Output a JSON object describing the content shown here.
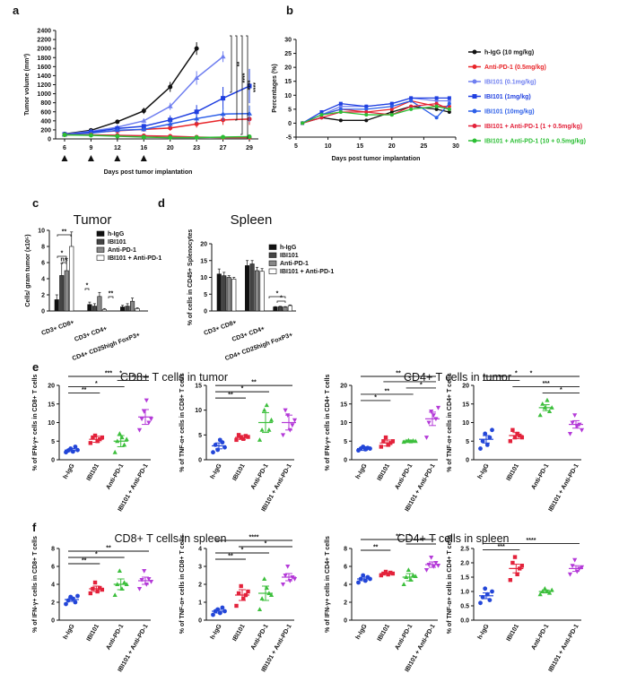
{
  "colors": {
    "hIgG": "#111111",
    "antiPD1": "#e8262a",
    "ibi01": "#6f7ff0",
    "ibi1": "#1f3fe0",
    "ibi10": "#2b5ee8",
    "combo1": "#e3223b",
    "combo10": "#2bbf34",
    "scatter": [
      "#2346d8",
      "#e3223b",
      "#3dbf3d",
      "#b43ad8"
    ]
  },
  "panel_labels": [
    "a",
    "b",
    "c",
    "d",
    "e",
    "f"
  ],
  "chart_data": [
    {
      "id": "a",
      "type": "line",
      "xlabel": "Days post tumor implantation",
      "ylabel": "Tumor volume (mm³)",
      "x": [
        6,
        9,
        12,
        16,
        20,
        23,
        27,
        29
      ],
      "xticks": [
        "6",
        "9",
        "12",
        "16",
        "20",
        "23",
        "27",
        "29"
      ],
      "yticks": [
        "0",
        "200",
        "400",
        "600",
        "800",
        "1000",
        "1200",
        "1400",
        "1600",
        "1800",
        "2000",
        "2200",
        "2400"
      ],
      "ylim": [
        0,
        2400
      ],
      "dosing_days": [
        6,
        9,
        12,
        16
      ],
      "significance": [
        "**",
        "****",
        "****",
        "****"
      ],
      "series": [
        {
          "name": "h-IgG (10 mg/kg)",
          "color": "#111111",
          "values": [
            110,
            190,
            380,
            620,
            1150,
            2000,
            null,
            null
          ],
          "err": [
            15,
            25,
            40,
            70,
            110,
            140,
            null,
            null
          ]
        },
        {
          "name": "Anti-PD-1 (0.5mg/kg)",
          "color": "#e8262a",
          "values": [
            100,
            140,
            180,
            210,
            240,
            330,
            420,
            440
          ],
          "err": [
            10,
            20,
            30,
            40,
            60,
            80,
            110,
            130
          ]
        },
        {
          "name": "IBI101 (0.1mg/kg)",
          "color": "#6f7ff0",
          "values": [
            105,
            170,
            260,
            400,
            720,
            1350,
            1820,
            null
          ],
          "err": [
            12,
            20,
            40,
            50,
            80,
            150,
            120,
            null
          ]
        },
        {
          "name": "IBI101 (1mg/kg)",
          "color": "#1f3fe0",
          "values": [
            100,
            150,
            230,
            280,
            420,
            600,
            900,
            1170
          ],
          "err": [
            10,
            20,
            40,
            50,
            100,
            150,
            250,
            380
          ]
        },
        {
          "name": "IBI101 (10mg/kg)",
          "color": "#2b5ee8",
          "values": [
            95,
            130,
            190,
            210,
            330,
            450,
            550,
            560
          ],
          "err": [
            10,
            15,
            30,
            40,
            80,
            100,
            150,
            180
          ]
        },
        {
          "name": "IBI101 + Anti-PD-1 (1 + 0.5mg/kg)",
          "color": "#e3223b",
          "values": [
            90,
            90,
            80,
            70,
            60,
            40,
            30,
            30
          ],
          "err": [
            10,
            10,
            15,
            15,
            15,
            10,
            10,
            10
          ]
        },
        {
          "name": "IBI101 + Anti-PD-1 (10 + 0.5mg/kg)",
          "color": "#2bbf34",
          "values": [
            90,
            80,
            60,
            40,
            30,
            30,
            40,
            50
          ],
          "err": [
            10,
            10,
            10,
            10,
            10,
            10,
            10,
            15
          ]
        }
      ]
    },
    {
      "id": "b",
      "type": "line",
      "xlabel": "Days post tumor implantation",
      "ylabel": "Percentages (%)",
      "xticks": [
        "5",
        "10",
        "15",
        "20",
        "25",
        "30"
      ],
      "yticks": [
        "-5",
        "0",
        "5",
        "10",
        "15",
        "20",
        "25",
        "30"
      ],
      "xlim": [
        5,
        30
      ],
      "ylim": [
        -5,
        30
      ],
      "x": [
        6,
        9,
        12,
        16,
        20,
        23,
        27,
        29
      ],
      "series": [
        {
          "name": "h-IgG (10 mg/kg)",
          "color": "#111111",
          "values": [
            0,
            2,
            1,
            1,
            4,
            6,
            5,
            4
          ]
        },
        {
          "name": "Anti-PD-1 (0.5mg/kg)",
          "color": "#e8262a",
          "values": [
            0,
            3,
            5,
            4,
            5,
            8,
            6,
            6
          ]
        },
        {
          "name": "IBI101 (0.1mg/kg)",
          "color": "#6f7ff0",
          "values": [
            0,
            3,
            6,
            6,
            7,
            9,
            8,
            8
          ]
        },
        {
          "name": "IBI101 (1mg/kg)",
          "color": "#1f3fe0",
          "values": [
            0,
            4,
            7,
            6,
            7,
            9,
            9,
            9
          ]
        },
        {
          "name": "IBI101 (10mg/kg)",
          "color": "#2b5ee8",
          "values": [
            0,
            3,
            5,
            5,
            6,
            8,
            2,
            7
          ]
        },
        {
          "name": "IBI101 + Anti-PD-1 (1 + 0.5mg/kg)",
          "color": "#e3223b",
          "values": [
            0,
            2,
            4,
            4,
            3,
            6,
            7,
            5
          ]
        },
        {
          "name": "IBI101 + Anti-PD-1 (10 + 0.5mg/kg)",
          "color": "#2bbf34",
          "values": [
            0,
            3,
            4,
            3,
            3,
            5,
            6,
            5
          ]
        }
      ]
    },
    {
      "id": "c",
      "type": "bar",
      "title": "Tumor",
      "ylabel": "Cells/ gram tumor (x10⁵)",
      "yticks": [
        "0",
        "2",
        "4",
        "6",
        "8",
        "10"
      ],
      "ylim": [
        0,
        10
      ],
      "categories": [
        "CD3+ CD8+",
        "CD3+ CD4+",
        "CD4+ CD25high FoxP3+"
      ],
      "legend": [
        "h-IgG",
        "IBI101",
        "Anti-PD-1",
        "IBI101 + Anti-PD-1"
      ],
      "series": [
        {
          "name": "h-IgG",
          "values": [
            1.4,
            0.8,
            0.5
          ],
          "err": [
            0.6,
            0.3,
            0.2
          ]
        },
        {
          "name": "IBI101",
          "values": [
            4.4,
            0.6,
            0.6
          ],
          "err": [
            1.5,
            0.3,
            0.3
          ]
        },
        {
          "name": "Anti-PD-1",
          "values": [
            5.0,
            1.8,
            1.2
          ],
          "err": [
            1.5,
            0.5,
            0.4
          ]
        },
        {
          "name": "IBI101 + Anti-PD-1",
          "values": [
            8.0,
            0.2,
            0.3
          ],
          "err": [
            1.8,
            0.1,
            0.1
          ]
        }
      ],
      "significance": [
        "**",
        "*",
        "ns",
        "*",
        "**"
      ]
    },
    {
      "id": "d",
      "type": "bar",
      "title": "Spleen",
      "ylabel": "% of cells in CD45+ Splenocytes",
      "yticks": [
        "0",
        "5",
        "10",
        "15",
        "20"
      ],
      "ylim": [
        0,
        20
      ],
      "categories": [
        "CD3+ CD8+",
        "CD3+ CD4+",
        "CD4+ CD25high FoxP3+"
      ],
      "legend": [
        "h-IgG",
        "IBI101",
        "Anti-PD-1",
        "IBI101 + Anti-PD-1"
      ],
      "series": [
        {
          "name": "h-IgG",
          "values": [
            11.0,
            13.5,
            1.2
          ],
          "err": [
            1.5,
            1.5,
            0.1
          ]
        },
        {
          "name": "IBI101",
          "values": [
            10.5,
            14.0,
            1.3
          ],
          "err": [
            1.0,
            1.0,
            0.1
          ]
        },
        {
          "name": "Anti-PD-1",
          "values": [
            10.0,
            12.0,
            1.2
          ],
          "err": [
            0.5,
            1.0,
            0.1
          ]
        },
        {
          "name": "IBI101 + Anti-PD-1",
          "values": [
            9.5,
            11.8,
            1.6
          ],
          "err": [
            0.5,
            0.8,
            0.2
          ]
        }
      ],
      "significance": [
        "*",
        "*"
      ]
    },
    {
      "id": "e1",
      "type": "scatter",
      "ylabel": "% of IFN-γ+ cells in CD8+ T cells",
      "yticks": [
        "0",
        "5",
        "10",
        "15",
        "20"
      ],
      "ylim": [
        0,
        20
      ],
      "categories": [
        "h-IgG",
        "IBI101",
        "Anti-PD-1",
        "IBI101 + Anti-PD-1"
      ],
      "means": [
        2.6,
        5.5,
        5.0,
        11.5
      ],
      "sem": [
        0.4,
        0.8,
        1.5,
        2.0
      ],
      "points": [
        [
          2,
          2.5,
          3,
          2.2,
          3.5,
          2.6
        ],
        [
          4.5,
          6,
          6.5,
          5,
          5.5,
          6
        ],
        [
          2,
          5,
          7,
          6,
          4,
          5.5
        ],
        [
          8,
          11,
          13,
          16,
          10,
          11
        ]
      ],
      "significance": [
        "**",
        "*",
        "***",
        "*",
        "*"
      ]
    },
    {
      "id": "e2",
      "type": "scatter",
      "ylabel": "% of TNF-α+ cells in CD8+ T cells",
      "yticks": [
        "0",
        "5",
        "10",
        "15"
      ],
      "ylim": [
        0,
        15
      ],
      "categories": [
        "h-IgG",
        "IBI101",
        "Anti-PD-1",
        "IBI101 + Anti-PD-1"
      ],
      "means": [
        2.8,
        4.5,
        7.5,
        7.5
      ],
      "sem": [
        0.6,
        0.4,
        2.0,
        1.5
      ],
      "points": [
        [
          1.5,
          3,
          2,
          4,
          3.5,
          2.5
        ],
        [
          4,
          5,
          4.5,
          4.2,
          4.8,
          4.6
        ],
        [
          4,
          6,
          10,
          11,
          6,
          8
        ],
        [
          5,
          10,
          9,
          6,
          7,
          8
        ]
      ],
      "significance": [
        "**",
        "*",
        "**"
      ]
    },
    {
      "id": "e3",
      "type": "scatter",
      "ylabel": "% of IFN-γ+ cells in CD4+ T cells",
      "yticks": [
        "0",
        "5",
        "10",
        "15",
        "20"
      ],
      "ylim": [
        0,
        20
      ],
      "categories": [
        "h-IgG",
        "IBI101",
        "Anti-PD-1",
        "IBI101 + Anti-PD-1"
      ],
      "means": [
        3.0,
        4.5,
        5.0,
        11.0
      ],
      "sem": [
        0.5,
        0.8,
        0.3,
        1.8
      ],
      "points": [
        [
          2.5,
          3,
          3.5,
          2.8,
          3.2,
          3
        ],
        [
          3.5,
          5,
          6,
          4,
          4.5,
          5
        ],
        [
          4.8,
          5,
          5.2,
          4.9,
          5.1,
          5
        ],
        [
          6,
          10,
          13,
          12,
          11,
          14
        ]
      ],
      "significance": [
        "*",
        "**",
        "**",
        "*",
        "*"
      ]
    },
    {
      "id": "e4",
      "type": "scatter",
      "ylabel": "% of TNF-α+ cells in CD4+ T cells",
      "yticks": [
        "0",
        "5",
        "10",
        "15",
        "20"
      ],
      "ylim": [
        0,
        20
      ],
      "categories": [
        "h-IgG",
        "IBI101",
        "Anti-PD-1",
        "IBI101 + Anti-PD-1"
      ],
      "means": [
        5.5,
        6.5,
        14.0,
        9.5
      ],
      "sem": [
        1.0,
        0.8,
        0.8,
        1.0
      ],
      "points": [
        [
          3,
          5,
          7,
          4,
          6,
          8
        ],
        [
          5,
          8,
          6,
          7,
          6.5,
          6
        ],
        [
          12,
          15,
          14,
          16,
          13,
          14
        ],
        [
          7,
          10,
          12,
          9,
          9.5,
          8
        ]
      ],
      "significance": [
        "*",
        "***",
        "*",
        "*",
        "**"
      ]
    },
    {
      "id": "f1",
      "type": "scatter",
      "ylabel": "% of IFN-γ+ cells in CD8+ T cells",
      "yticks": [
        "0",
        "2",
        "4",
        "6",
        "8"
      ],
      "ylim": [
        0,
        8
      ],
      "categories": [
        "h-IgG",
        "IBI101",
        "Anti-PD-1",
        "IBI101 + Anti-PD-1"
      ],
      "means": [
        2.3,
        3.5,
        4.0,
        4.4
      ],
      "sem": [
        0.2,
        0.3,
        0.6,
        0.4
      ],
      "points": [
        [
          1.8,
          2.2,
          2.6,
          2.4,
          2.0,
          2.7
        ],
        [
          3.0,
          3.5,
          4.2,
          3.2,
          3.6,
          3.4
        ],
        [
          2.8,
          4.0,
          5.5,
          3.5,
          4.2,
          4.0
        ],
        [
          3.5,
          4.5,
          5.5,
          4.0,
          4.6,
          4.3
        ]
      ],
      "significance": [
        "**",
        "*",
        "**"
      ]
    },
    {
      "id": "f2",
      "type": "scatter",
      "ylabel": "% of TNF-α+ cells in CD8+ T cells",
      "yticks": [
        "0",
        "1",
        "2",
        "3",
        "4"
      ],
      "ylim": [
        0,
        4
      ],
      "categories": [
        "h-IgG",
        "IBI101",
        "Anti-PD-1",
        "IBI101 + Anti-PD-1"
      ],
      "means": [
        0.5,
        1.4,
        1.5,
        2.4
      ],
      "sem": [
        0.1,
        0.3,
        0.4,
        0.2
      ],
      "points": [
        [
          0.3,
          0.5,
          0.6,
          0.4,
          0.7,
          0.5
        ],
        [
          0.8,
          1.5,
          1.9,
          1.2,
          1.4,
          1.6
        ],
        [
          0.6,
          1.2,
          2.3,
          1.8,
          1.5,
          1.4
        ],
        [
          2.0,
          2.5,
          3.0,
          2.2,
          2.4,
          2.3
        ]
      ],
      "significance": [
        "**",
        "*",
        "****",
        "*"
      ]
    },
    {
      "id": "f3",
      "type": "scatter",
      "ylabel": "% of IFN-γ+ cells in CD4+ T cells",
      "yticks": [
        "0",
        "2",
        "4",
        "6",
        "8"
      ],
      "ylim": [
        0,
        8
      ],
      "categories": [
        "h-IgG",
        "IBI101",
        "Anti-PD-1",
        "IBI101 + Anti-PD-1"
      ],
      "means": [
        4.6,
        5.2,
        4.8,
        6.2
      ],
      "sem": [
        0.2,
        0.1,
        0.4,
        0.3
      ],
      "points": [
        [
          4.2,
          4.6,
          5.0,
          4.4,
          4.8,
          4.6
        ],
        [
          5.0,
          5.2,
          5.4,
          5.1,
          5.3,
          5.2
        ],
        [
          4.0,
          4.8,
          5.6,
          4.5,
          5.0,
          4.9
        ],
        [
          5.6,
          6.2,
          7.0,
          6.0,
          6.4,
          6.1
        ]
      ],
      "significance": [
        "**",
        "**",
        "*",
        "*"
      ]
    },
    {
      "id": "f4",
      "type": "scatter",
      "ylabel": "% of TNF-α+ cells in CD4+ T cells",
      "yticks": [
        "0.0",
        "0.5",
        "1.0",
        "1.5",
        "2.0",
        "2.5"
      ],
      "ylim": [
        0,
        2.5
      ],
      "categories": [
        "h-IgG",
        "IBI101",
        "Anti-PD-1",
        "IBI101 + Anti-PD-1"
      ],
      "means": [
        0.85,
        1.8,
        1.0,
        1.8
      ],
      "sem": [
        0.1,
        0.15,
        0.05,
        0.1
      ],
      "points": [
        [
          0.6,
          0.8,
          1.1,
          0.9,
          0.7,
          1.0
        ],
        [
          1.4,
          2.0,
          2.2,
          1.6,
          1.8,
          1.9
        ],
        [
          0.9,
          1.0,
          1.1,
          1.0,
          0.95,
          1.05
        ],
        [
          1.6,
          1.9,
          2.1,
          1.7,
          1.8,
          1.85
        ]
      ],
      "significance": [
        "***",
        "****"
      ]
    }
  ],
  "section_titles": {
    "c_tumor": "Tumor",
    "d_spleen": "Spleen",
    "e_left": "CD8+ T cells in tumor",
    "e_right": "CD4+ T cells in tumor",
    "f_left": "CD8+ T cells in spleen",
    "f_right": "CD4+ T cells in spleen"
  }
}
